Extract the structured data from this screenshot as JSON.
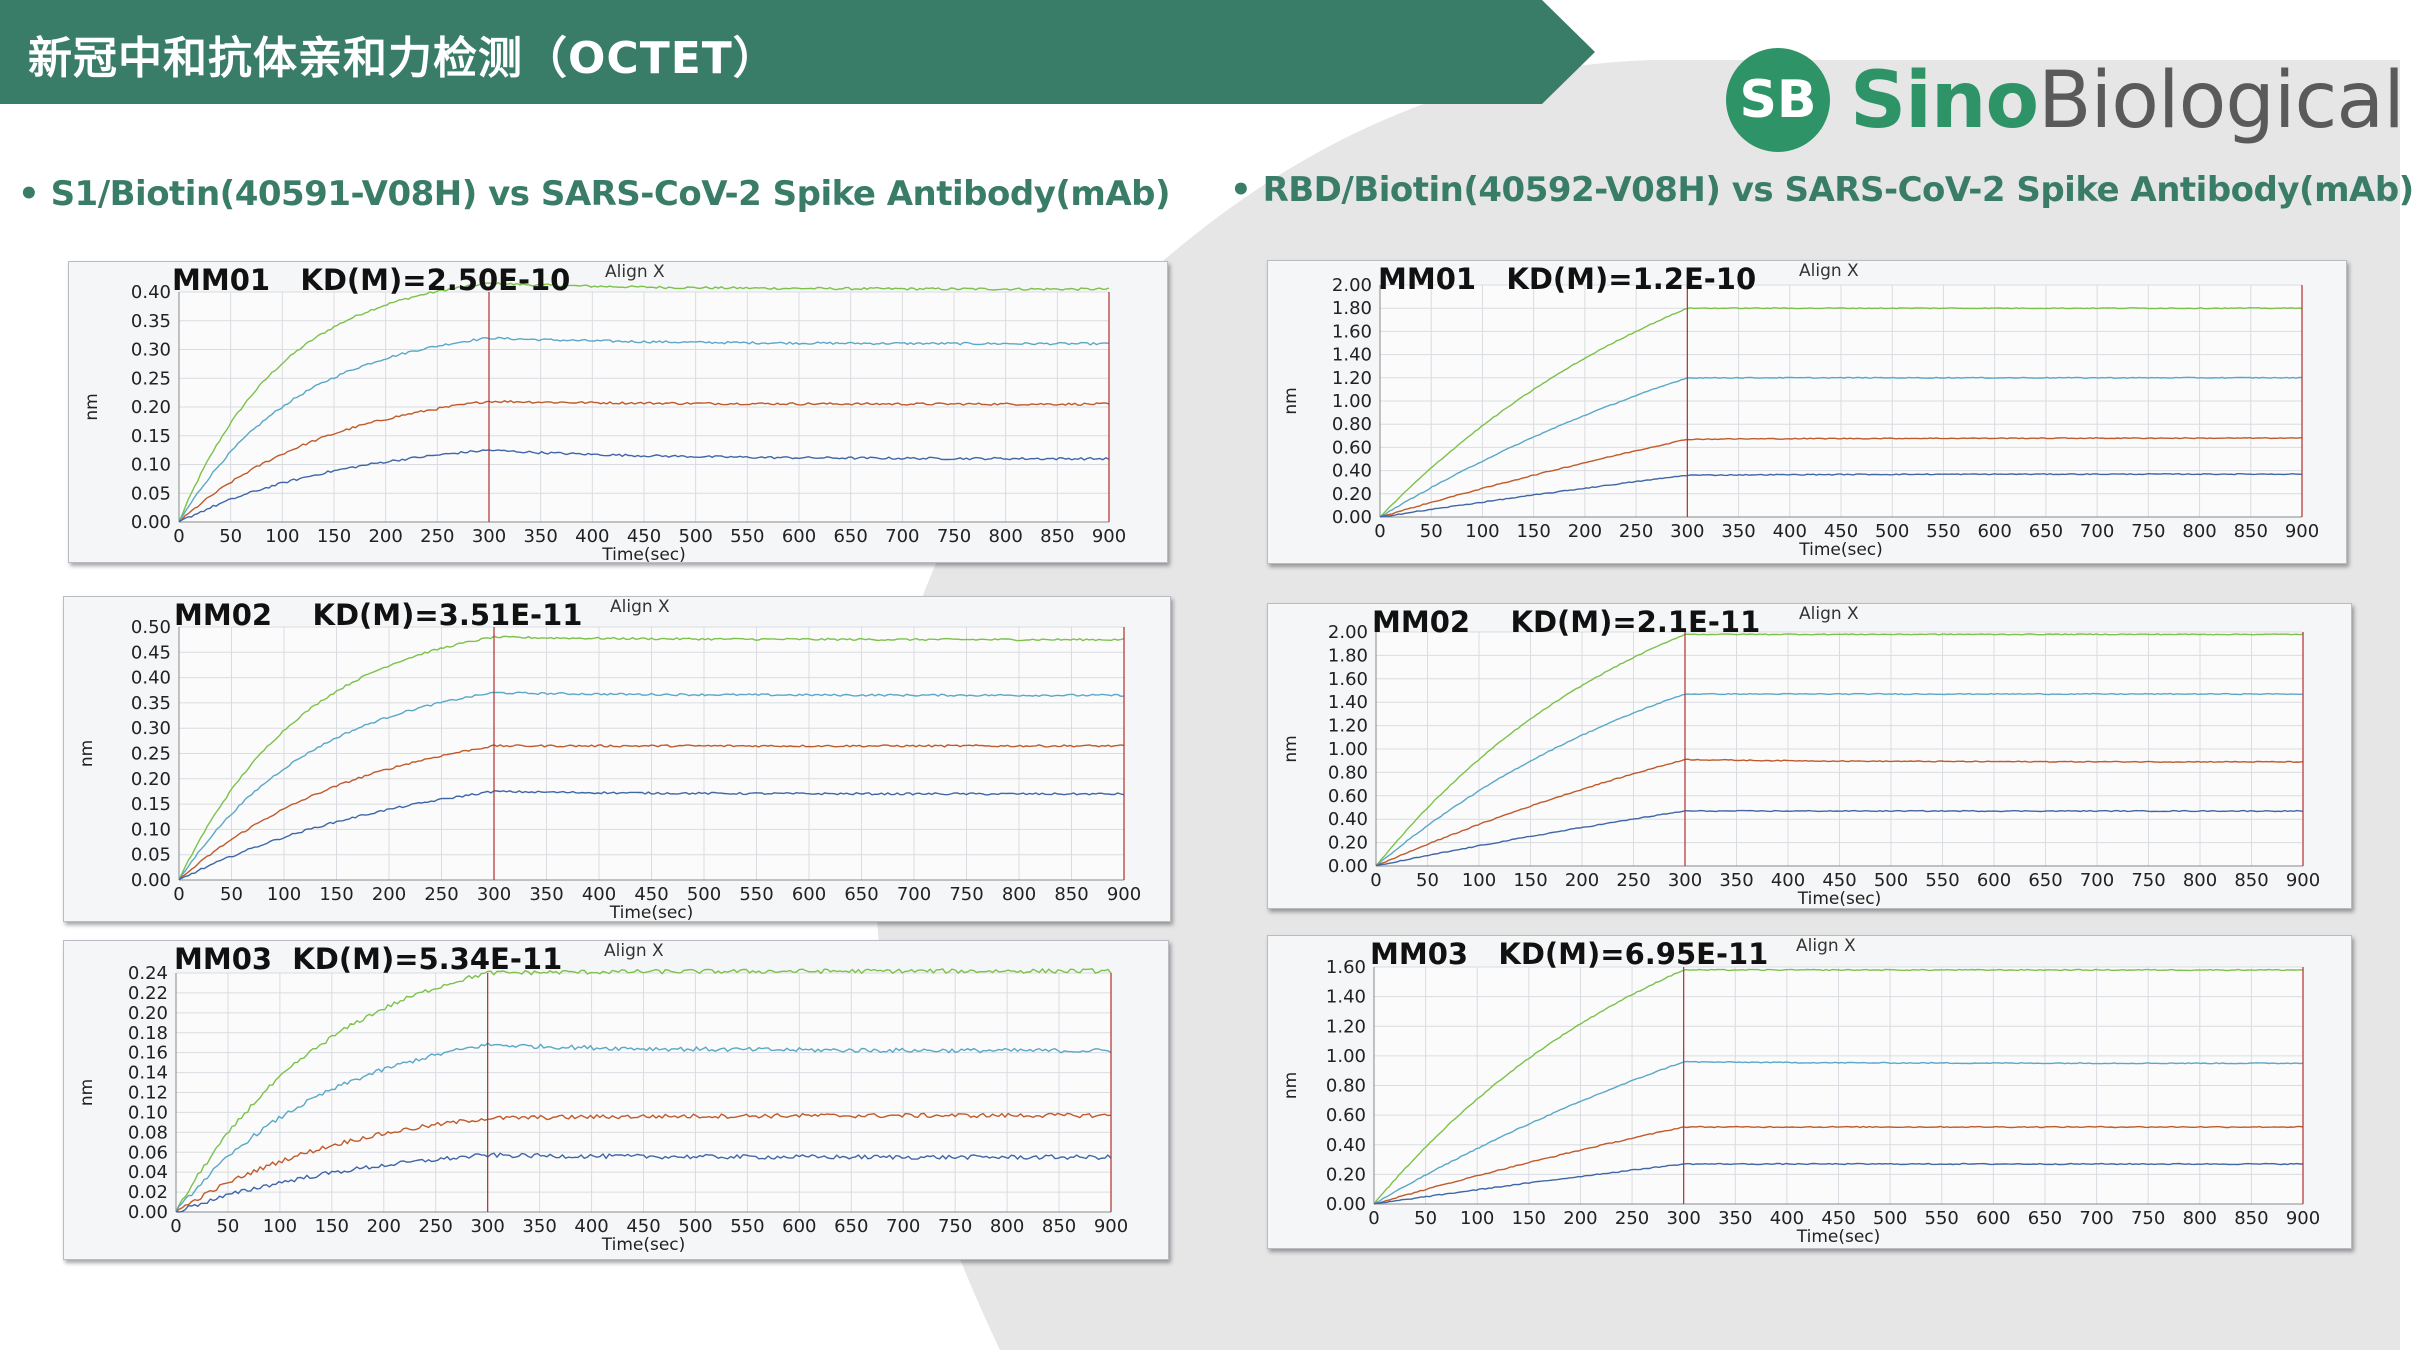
{
  "header": {
    "title": "新冠中和抗体亲和力检测（OCTET）"
  },
  "logo": {
    "mark": "SB",
    "brand_part1": "Sino",
    "brand_part2": "Biological"
  },
  "colors": {
    "header": "#397c67",
    "accent": "#2e9468",
    "series": [
      "#7cc24a",
      "#5aa8c8",
      "#c05a2a",
      "#3f67a6"
    ],
    "dissociation_line": "#b03030"
  },
  "sections": [
    {
      "heading": "• S1/Biotin(40591-V08H) vs  SARS-CoV-2 Spike Antibody(mAb)"
    },
    {
      "heading": "• RBD/Biotin(40592-V08H) vs SARS-CoV-2 Spike Antibody(mAb)"
    }
  ],
  "chart_data": [
    {
      "id": "L1",
      "type": "line",
      "sample": "MM01",
      "kd": "KD(M)=2.50E-10",
      "align": "Align X",
      "xlabel": "Time(sec)",
      "ylabel": "nm",
      "xlim": [
        0,
        900
      ],
      "ylim": [
        0,
        0.4
      ],
      "ystep": 0.05,
      "ydec": 2,
      "yticks": [
        "0.00",
        "0.05",
        "0.10",
        "0.15",
        "0.20",
        "0.25",
        "0.30",
        "0.35",
        "0.40"
      ],
      "xticks": [
        "0",
        "50",
        "100",
        "150",
        "200",
        "250",
        "300",
        "350",
        "400",
        "450",
        "500",
        "550",
        "600",
        "650",
        "700",
        "750",
        "800",
        "850",
        "900"
      ],
      "assoc_end": 300,
      "grid": true,
      "series": [
        {
          "plateau": 0.415,
          "final": 0.405,
          "curv": 3.0
        },
        {
          "plateau": 0.32,
          "final": 0.31,
          "curv": 2.6
        },
        {
          "plateau": 0.21,
          "final": 0.205,
          "curv": 2.0
        },
        {
          "plateau": 0.125,
          "final": 0.11,
          "curv": 1.8
        }
      ],
      "noise": 0.002
    },
    {
      "id": "L2",
      "type": "line",
      "sample": "MM02",
      "kd": "KD(M)=3.51E-11",
      "align": "Align X",
      "xlabel": "Time(sec)",
      "ylabel": "nm",
      "xlim": [
        0,
        900
      ],
      "ylim": [
        0,
        0.5
      ],
      "ystep": 0.05,
      "ydec": 2,
      "yticks": [
        "0.00",
        "0.05",
        "0.10",
        "0.15",
        "0.20",
        "0.25",
        "0.30",
        "0.35",
        "0.40",
        "0.45",
        "0.50"
      ],
      "xticks": [
        "0",
        "50",
        "100",
        "150",
        "200",
        "250",
        "300",
        "350",
        "400",
        "450",
        "500",
        "550",
        "600",
        "650",
        "700",
        "750",
        "800",
        "850",
        "900"
      ],
      "assoc_end": 300,
      "grid": true,
      "series": [
        {
          "plateau": 0.48,
          "final": 0.475,
          "curv": 2.5
        },
        {
          "plateau": 0.37,
          "final": 0.365,
          "curv": 2.3
        },
        {
          "plateau": 0.265,
          "final": 0.265,
          "curv": 1.7
        },
        {
          "plateau": 0.175,
          "final": 0.17,
          "curv": 1.3
        }
      ],
      "noise": 0.002
    },
    {
      "id": "L3",
      "type": "line",
      "sample": "MM03",
      "kd": "KD(M)=5.34E-11",
      "align": "Align X",
      "xlabel": "Time(sec)",
      "ylabel": "nm",
      "xlim": [
        0,
        900
      ],
      "ylim": [
        0,
        0.24
      ],
      "ystep": 0.02,
      "ydec": 2,
      "yticks": [
        "0.00",
        "0.02",
        "0.04",
        "0.06",
        "0.08",
        "0.10",
        "0.12",
        "0.14",
        "0.16",
        "0.18",
        "0.20",
        "0.22",
        "0.24"
      ],
      "xticks": [
        "0",
        "50",
        "100",
        "150",
        "200",
        "250",
        "300",
        "350",
        "400",
        "450",
        "500",
        "550",
        "600",
        "650",
        "700",
        "750",
        "800",
        "850",
        "900"
      ],
      "assoc_end": 300,
      "grid": true,
      "series": [
        {
          "plateau": 0.24,
          "final": 0.242,
          "curv": 2.0
        },
        {
          "plateau": 0.168,
          "final": 0.162,
          "curv": 2.0
        },
        {
          "plateau": 0.094,
          "final": 0.097,
          "curv": 1.8
        },
        {
          "plateau": 0.057,
          "final": 0.055,
          "curv": 1.6
        }
      ],
      "noise": 0.0022
    },
    {
      "id": "R1",
      "type": "line",
      "sample": "MM01",
      "kd": "KD(M)=1.2E-10",
      "align": "Align X",
      "xlabel": "Time(sec)",
      "ylabel": "nm",
      "xlim": [
        0,
        900
      ],
      "ylim": [
        0,
        2.0
      ],
      "ystep": 0.2,
      "ydec": 2,
      "yticks": [
        "0.00",
        "0.20",
        "0.40",
        "0.60",
        "0.80",
        "1.00",
        "1.20",
        "1.40",
        "1.60",
        "1.80",
        "2.00"
      ],
      "xticks": [
        "0",
        "50",
        "100",
        "150",
        "200",
        "250",
        "300",
        "350",
        "400",
        "450",
        "500",
        "550",
        "600",
        "650",
        "700",
        "750",
        "800",
        "850",
        "900"
      ],
      "assoc_end": 300,
      "grid": true,
      "series": [
        {
          "plateau": 1.8,
          "final": 1.8,
          "curv": 0.9
        },
        {
          "plateau": 1.2,
          "final": 1.2,
          "curv": 0.6
        },
        {
          "plateau": 0.67,
          "final": 0.68,
          "curv": 0.3
        },
        {
          "plateau": 0.36,
          "final": 0.37,
          "curv": 0.2
        }
      ],
      "noise": 0.004
    },
    {
      "id": "R2",
      "type": "line",
      "sample": "MM02",
      "kd": "KD(M)=2.1E-11",
      "align": "Align X",
      "xlabel": "Time(sec)",
      "ylabel": "nm",
      "xlim": [
        0,
        900
      ],
      "ylim": [
        0,
        2.0
      ],
      "ystep": 0.2,
      "ydec": 2,
      "yticks": [
        "0.00",
        "0.20",
        "0.40",
        "0.60",
        "0.80",
        "1.00",
        "1.20",
        "1.40",
        "1.60",
        "1.80",
        "2.00"
      ],
      "xticks": [
        "0",
        "50",
        "100",
        "150",
        "200",
        "250",
        "300",
        "350",
        "400",
        "450",
        "500",
        "550",
        "600",
        "650",
        "700",
        "750",
        "800",
        "850",
        "900"
      ],
      "assoc_end": 300,
      "grid": true,
      "series": [
        {
          "plateau": 1.98,
          "final": 1.98,
          "curv": 1.1
        },
        {
          "plateau": 1.47,
          "final": 1.47,
          "curv": 0.9
        },
        {
          "plateau": 0.91,
          "final": 0.89,
          "curv": 0.5
        },
        {
          "plateau": 0.47,
          "final": 0.47,
          "curv": 0.3
        }
      ],
      "noise": 0.004
    },
    {
      "id": "R3",
      "type": "line",
      "sample": "MM03",
      "kd": "KD(M)=6.95E-11",
      "align": "Align X",
      "xlabel": "Time(sec)",
      "ylabel": "nm",
      "xlim": [
        0,
        900
      ],
      "ylim": [
        0,
        1.6
      ],
      "ystep": 0.2,
      "ydec": 2,
      "yticks": [
        "0.00",
        "0.20",
        "0.40",
        "0.60",
        "0.80",
        "1.00",
        "1.20",
        "1.40",
        "1.60"
      ],
      "xticks": [
        "0",
        "50",
        "100",
        "150",
        "200",
        "250",
        "300",
        "350",
        "400",
        "450",
        "500",
        "550",
        "600",
        "650",
        "700",
        "750",
        "800",
        "850",
        "900"
      ],
      "assoc_end": 300,
      "grid": true,
      "series": [
        {
          "plateau": 1.58,
          "final": 1.58,
          "curv": 1.0
        },
        {
          "plateau": 0.96,
          "final": 0.95,
          "curv": 0.5
        },
        {
          "plateau": 0.52,
          "final": 0.52,
          "curv": 0.3
        },
        {
          "plateau": 0.27,
          "final": 0.27,
          "curv": 0.2
        }
      ],
      "noise": 0.0035
    }
  ]
}
